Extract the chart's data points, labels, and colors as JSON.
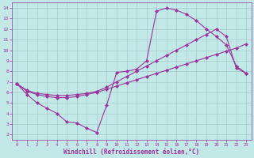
{
  "xlabel": "Windchill (Refroidissement éolien,°C)",
  "xlim": [
    -0.5,
    23.5
  ],
  "ylim": [
    1.5,
    14.5
  ],
  "xticks": [
    0,
    1,
    2,
    3,
    4,
    5,
    6,
    7,
    8,
    9,
    10,
    11,
    12,
    13,
    14,
    15,
    16,
    17,
    18,
    19,
    20,
    21,
    22,
    23
  ],
  "yticks": [
    2,
    3,
    4,
    5,
    6,
    7,
    8,
    9,
    10,
    11,
    12,
    13,
    14
  ],
  "bg_color": "#c2e8e8",
  "line_color": "#993399",
  "grid_color": "#a8cccc",
  "curve1_x": [
    0,
    1,
    2,
    3,
    4,
    5,
    6,
    7,
    8,
    9,
    10,
    11,
    12,
    13,
    14,
    15,
    16,
    17,
    18,
    19,
    20,
    21,
    22,
    23
  ],
  "curve1_y": [
    6.8,
    5.8,
    5.0,
    4.5,
    4.0,
    3.2,
    3.1,
    2.6,
    2.2,
    4.8,
    7.9,
    8.0,
    8.2,
    9.0,
    13.7,
    14.0,
    13.8,
    13.4,
    12.8,
    12.0,
    11.3,
    10.5,
    8.5,
    7.8
  ],
  "curve2_x": [
    0,
    1,
    2,
    3,
    4,
    5,
    6,
    7,
    8,
    9,
    10,
    11,
    12,
    13,
    14,
    15,
    16,
    17,
    18,
    19,
    20,
    21,
    22,
    23
  ],
  "curve2_y": [
    6.8,
    6.2,
    5.9,
    5.8,
    5.7,
    5.7,
    5.8,
    5.9,
    6.1,
    6.5,
    7.0,
    7.5,
    8.0,
    8.5,
    9.0,
    9.5,
    10.0,
    10.5,
    11.0,
    11.5,
    12.0,
    11.3,
    8.3,
    7.8
  ],
  "curve3_x": [
    0,
    1,
    2,
    3,
    4,
    5,
    6,
    7,
    8,
    9,
    10,
    11,
    12,
    13,
    14,
    15,
    16,
    17,
    18,
    19,
    20,
    21,
    22,
    23
  ],
  "curve3_y": [
    6.8,
    6.1,
    5.8,
    5.6,
    5.5,
    5.5,
    5.6,
    5.8,
    6.0,
    6.3,
    6.6,
    6.9,
    7.2,
    7.5,
    7.8,
    8.1,
    8.4,
    8.7,
    9.0,
    9.3,
    9.6,
    9.9,
    10.2,
    10.6
  ]
}
